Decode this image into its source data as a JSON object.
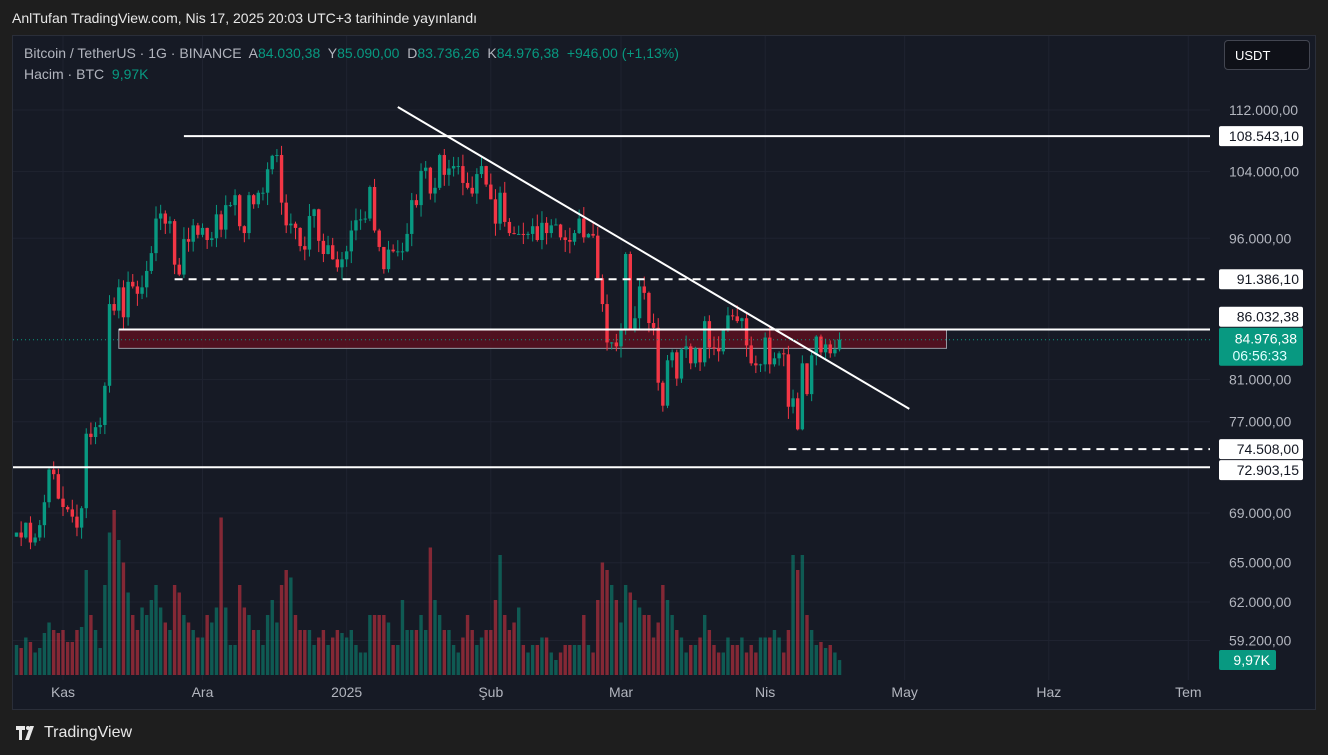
{
  "banner": "AnlTufan TradingView.com, Nis 17, 2025 20:03 UTC+3 tarihinde yayınlandı",
  "legend": {
    "symbol": "Bitcoin / TetherUS · 1G · BINANCE",
    "o_label": "A",
    "o": "84.030,38",
    "h_label": "Y",
    "h": "85.090,00",
    "l_label": "D",
    "l": "83.736,26",
    "c_label": "K",
    "c": "84.976,38",
    "change": "+946,00 (+1,13%)",
    "volume_label": "Hacim · BTC",
    "volume": "9,97K"
  },
  "currency_button": "USDT",
  "footer": {
    "brand": "TradingView"
  },
  "colors": {
    "up": "#089981",
    "down": "#f23645",
    "background": "#161a25",
    "zone": "#5a1020"
  },
  "chart_data": {
    "type": "candlestick",
    "scale": "log",
    "start_date": "2024-10-22",
    "ylim": [
      59200,
      112000
    ],
    "closes_k": [
      67.4,
      67.0,
      68.2,
      66.6,
      67.0,
      68.0,
      69.9,
      72.7,
      72.3,
      70.2,
      69.5,
      69.3,
      68.7,
      67.8,
      69.4,
      75.9,
      75.6,
      76.5,
      76.7,
      80.4,
      88.7,
      88.0,
      90.5,
      87.3,
      91.1,
      90.6,
      89.8,
      90.5,
      92.3,
      94.3,
      98.3,
      98.9,
      97.7,
      98.0,
      93.0,
      91.9,
      95.9,
      95.6,
      97.5,
      96.4,
      97.2,
      95.8,
      96.0,
      98.8,
      97.0,
      99.9,
      99.9,
      101.1,
      97.4,
      96.6,
      101.1,
      100.0,
      101.4,
      101.4,
      104.3,
      106.0,
      106.1,
      100.2,
      97.5,
      97.7,
      97.2,
      95.1,
      94.7,
      98.6,
      99.4,
      95.7,
      94.2,
      95.2,
      93.6,
      92.7,
      93.6,
      94.5,
      96.9,
      98.1,
      98.2,
      98.3,
      102.1,
      96.9,
      95.0,
      92.5,
      94.7,
      94.5,
      94.5,
      94.5,
      96.5,
      100.5,
      99.9,
      104.1,
      104.5,
      101.3,
      102.0,
      106.1,
      103.6,
      104.4,
      104.7,
      104.7,
      102.6,
      102.0,
      101.3,
      103.7,
      104.7,
      102.4,
      100.6,
      97.7,
      101.4,
      97.9,
      96.6,
      96.5,
      96.5,
      96.4,
      96.5,
      97.4,
      95.8,
      97.8,
      96.6,
      97.5,
      97.6,
      96.1,
      95.8,
      95.6,
      96.6,
      98.3,
      96.1,
      96.5,
      96.3,
      91.5,
      88.7,
      84.7,
      84.7,
      84.3,
      86.0,
      94.2,
      86.1,
      87.2,
      90.6,
      89.9,
      86.7,
      86.2,
      80.7,
      78.5,
      82.9,
      83.7,
      81.1,
      84.0,
      84.3,
      82.6,
      84.1,
      82.7,
      86.9,
      84.2,
      84.1,
      83.8,
      86.1,
      87.5,
      87.4,
      86.9,
      87.2,
      84.4,
      82.6,
      82.4,
      82.5,
      85.2,
      82.5,
      83.1,
      83.6,
      83.5,
      78.4,
      79.2,
      76.3,
      82.6,
      79.6,
      83.4,
      85.3,
      83.7,
      84.5,
      83.6,
      84.0,
      84.98
    ],
    "volumes_k": [
      20,
      18,
      25,
      22,
      15,
      18,
      28,
      35,
      30,
      28,
      30,
      22,
      22,
      30,
      32,
      70,
      40,
      30,
      18,
      60,
      95,
      110,
      90,
      75,
      55,
      40,
      30,
      45,
      40,
      50,
      60,
      45,
      35,
      30,
      60,
      55,
      40,
      35,
      30,
      25,
      25,
      40,
      35,
      45,
      105,
      45,
      20,
      20,
      60,
      45,
      40,
      30,
      30,
      20,
      40,
      50,
      35,
      60,
      70,
      65,
      40,
      30,
      30,
      30,
      20,
      25,
      30,
      20,
      25,
      30,
      28,
      25,
      30,
      20,
      15,
      15,
      40,
      40,
      40,
      40,
      35,
      20,
      20,
      50,
      30,
      30,
      30,
      40,
      30,
      85,
      50,
      40,
      30,
      30,
      20,
      15,
      25,
      40,
      30,
      20,
      25,
      30,
      30,
      50,
      80,
      40,
      30,
      35,
      45,
      20,
      15,
      20,
      20,
      25,
      25,
      15,
      10,
      15,
      20,
      20,
      20,
      20,
      40,
      20,
      15,
      50,
      75,
      70,
      60,
      50,
      35,
      60,
      55,
      50,
      45,
      40,
      40,
      25,
      35,
      60,
      50,
      40,
      30,
      25,
      15,
      20,
      20,
      25,
      40,
      30,
      20,
      15,
      15,
      25,
      20,
      20,
      25,
      15,
      20,
      15,
      25,
      25,
      25,
      30,
      25,
      15,
      30,
      80,
      70,
      80,
      40,
      30,
      20,
      22,
      18,
      20,
      15,
      9.97
    ],
    "x_ticks": [
      {
        "label": "Kas",
        "date": "2024-11-01"
      },
      {
        "label": "Ara",
        "date": "2024-12-01"
      },
      {
        "label": "2025",
        "date": "2025-01-01"
      },
      {
        "label": "Şub",
        "date": "2025-02-01"
      },
      {
        "label": "Mar",
        "date": "2025-03-01"
      },
      {
        "label": "Nis",
        "date": "2025-04-01"
      },
      {
        "label": "May",
        "date": "2025-05-01"
      },
      {
        "label": "Haz",
        "date": "2025-06-01"
      },
      {
        "label": "Tem",
        "date": "2025-07-01"
      }
    ],
    "y_ticks": [
      {
        "label": "112.000,00",
        "value": 112000
      },
      {
        "label": "104.000,00",
        "value": 104000
      },
      {
        "label": "96.000,00",
        "value": 96000
      },
      {
        "label": "81.000,00",
        "value": 81000
      },
      {
        "label": "77.000,00",
        "value": 77000
      },
      {
        "label": "69.000,00",
        "value": 69000
      },
      {
        "label": "65.000,00",
        "value": 65000
      },
      {
        "label": "62.000,00",
        "value": 62000
      },
      {
        "label": "59.200,00",
        "value": 59200
      }
    ],
    "levels": [
      {
        "label": "108.543,10",
        "value": 108543.1,
        "from": "2024-11-27",
        "style": "solid"
      },
      {
        "label": "91.386,10",
        "value": 91386.1,
        "from": "2024-11-25",
        "style": "dashed"
      },
      {
        "label": "86.032,38",
        "value": 86032.38,
        "from": "2024-11-13",
        "style": "solid"
      },
      {
        "label": "74.508,00",
        "value": 74508,
        "from": "2025-04-06",
        "style": "dashed"
      },
      {
        "label": "72.903,15",
        "value": 72903.15,
        "from": "2024-10-20",
        "style": "solid"
      }
    ],
    "zone": {
      "top": 86032.38,
      "bottom": 84100,
      "from": "2024-11-13",
      "to": "2025-05-10"
    },
    "trendline": {
      "start": {
        "date": "2025-01-12",
        "price": 112400
      },
      "end": {
        "date": "2025-05-02",
        "price": 78200
      }
    },
    "last_price": {
      "label": "84.976,38",
      "value": 84976.38,
      "countdown": "06:56:33"
    },
    "last_volume": {
      "label": "9,97K"
    }
  }
}
